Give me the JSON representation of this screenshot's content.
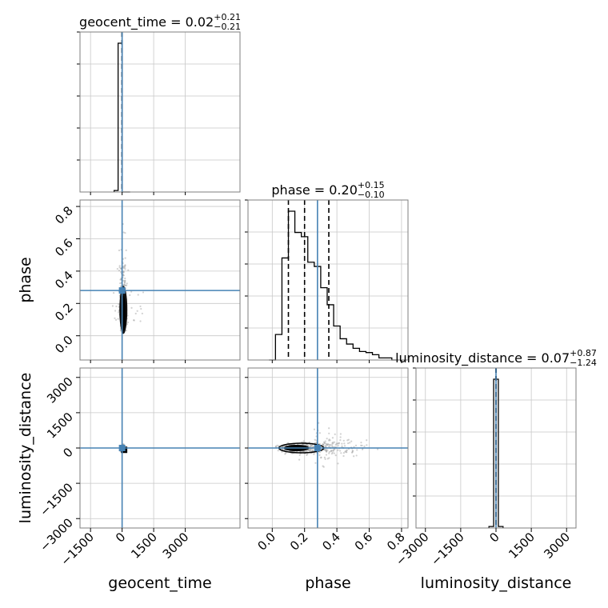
{
  "chart_data": {
    "type": "corner",
    "parameters": [
      "geocent_time",
      "phase",
      "luminosity_distance"
    ],
    "truths": {
      "geocent_time": 0,
      "phase": 0.28,
      "luminosity_distance": 0
    },
    "truth_color": "#4682b4",
    "ranges": {
      "geocent_time": [
        -2000,
        5600
      ],
      "phase": [
        -0.15,
        0.84
      ],
      "luminosity_distance": [
        -3400,
        3400
      ]
    },
    "ticks": {
      "geocent_time": {
        "values": [
          -1500,
          0,
          1500,
          3000
        ],
        "labels": [
          "−1500",
          "0",
          "1500",
          "3000"
        ]
      },
      "phase": {
        "values": [
          0.0,
          0.2,
          0.4,
          0.6,
          0.8
        ],
        "labels": [
          "0.0",
          "0.2",
          "0.4",
          "0.6",
          "0.8"
        ]
      },
      "luminosity_distance": {
        "values": [
          -3000,
          -1500,
          0,
          1500,
          3000
        ],
        "labels": [
          "−3000",
          "−1500",
          "0",
          "1500",
          "3000"
        ]
      }
    },
    "titles": [
      {
        "param": "geocent_time",
        "name": "geocent_time = ",
        "median": "0.02",
        "plus": "+0.21",
        "minus": "−0.21"
      },
      {
        "param": "phase",
        "name": "phase = ",
        "median": "0.20",
        "plus": "+0.15",
        "minus": "−0.10"
      },
      {
        "param": "luminosity_distance",
        "name": "luminosity_distance = ",
        "median": "0.07",
        "plus": "+0.87",
        "minus": "−1.24"
      }
    ],
    "axis_labels": {
      "geocent_time": "geocent_time",
      "phase": "phase",
      "luminosity_distance": "luminosity_distance"
    },
    "quantiles": {
      "geocent_time": [
        -0.19,
        0.02,
        0.23
      ],
      "phase": [
        0.1,
        0.2,
        0.35
      ],
      "luminosity_distance": [
        -1.17,
        0.07,
        0.94
      ]
    },
    "histograms": {
      "geocent_time": {
        "edges": [
          -380,
          -190,
          0,
          190,
          380
        ],
        "counts": [
          0.01,
          1.0,
          0.0,
          0.0
        ]
      },
      "phase": {
        "edges": [
          -0.02,
          0.02,
          0.06,
          0.1,
          0.14,
          0.18,
          0.22,
          0.26,
          0.3,
          0.34,
          0.38,
          0.42,
          0.46,
          0.5,
          0.54,
          0.58,
          0.62,
          0.66,
          0.7,
          0.74,
          0.78
        ],
        "counts": [
          0.0,
          0.12,
          0.48,
          0.7,
          0.6,
          0.58,
          0.46,
          0.44,
          0.34,
          0.26,
          0.16,
          0.1,
          0.075,
          0.055,
          0.04,
          0.035,
          0.025,
          0.01,
          0.01,
          0.0
        ]
      },
      "luminosity_distance": {
        "edges": [
          -300,
          -100,
          100,
          300
        ],
        "counts": [
          0.01,
          1.0,
          0.01
        ]
      }
    },
    "grid": true
  }
}
